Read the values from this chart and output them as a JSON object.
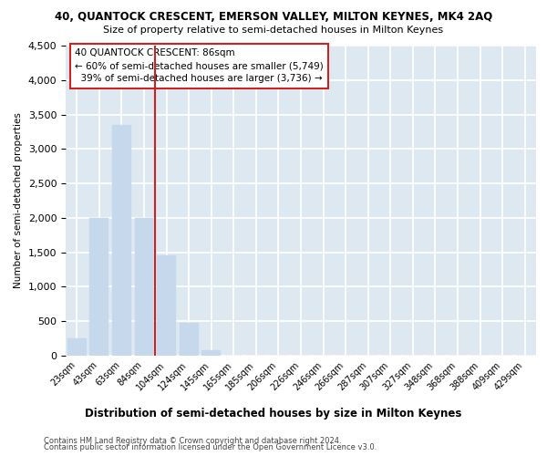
{
  "title_line1": "40, QUANTOCK CRESCENT, EMERSON VALLEY, MILTON KEYNES, MK4 2AQ",
  "title_line2": "Size of property relative to semi-detached houses in Milton Keynes",
  "xlabel": "Distribution of semi-detached houses by size in Milton Keynes",
  "ylabel": "Number of semi-detached properties",
  "footnote_line1": "Contains HM Land Registry data © Crown copyright and database right 2024.",
  "footnote_line2": "Contains public sector information licensed under the Open Government Licence v3.0.",
  "categories": [
    "23sqm",
    "43sqm",
    "63sqm",
    "84sqm",
    "104sqm",
    "124sqm",
    "145sqm",
    "165sqm",
    "185sqm",
    "206sqm",
    "226sqm",
    "246sqm",
    "266sqm",
    "287sqm",
    "307sqm",
    "327sqm",
    "348sqm",
    "368sqm",
    "388sqm",
    "409sqm",
    "429sqm"
  ],
  "values": [
    250,
    2000,
    3350,
    2000,
    1460,
    480,
    80,
    0,
    0,
    0,
    0,
    0,
    0,
    0,
    0,
    0,
    0,
    0,
    0,
    0,
    0
  ],
  "bar_color": "#c6d9ec",
  "annotation_text_line1": "40 QUANTOCK CRESCENT: 86sqm",
  "annotation_text_line2": "← 60% of semi-detached houses are smaller (5,749)",
  "annotation_text_line3": "  39% of semi-detached houses are larger (3,736) →",
  "vline_color": "#cc2222",
  "annotation_box_color": "#cc2222",
  "ylim": [
    0,
    4500
  ],
  "yticks": [
    0,
    500,
    1000,
    1500,
    2000,
    2500,
    3000,
    3500,
    4000,
    4500
  ],
  "background_color": "#dde8f0",
  "grid_color": "#ffffff"
}
